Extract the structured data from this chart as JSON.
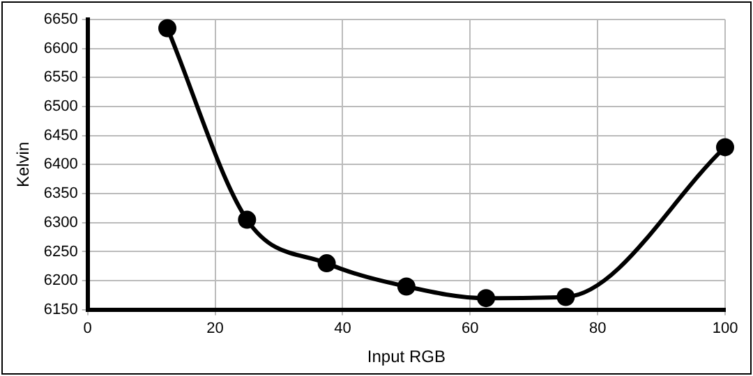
{
  "chart_data": {
    "type": "line",
    "xlabel": "Input RGB",
    "ylabel": "Kelvin",
    "x": [
      12.5,
      25,
      37.5,
      50,
      62.5,
      75,
      87.5,
      100
    ],
    "series": [
      {
        "color": "#000000",
        "values": [
          6635,
          6305,
          6230,
          6190,
          6170,
          6172,
          null,
          6430
        ]
      }
    ],
    "xlim": [
      0,
      100
    ],
    "xticks": [
      0,
      20,
      40,
      60,
      80,
      100
    ],
    "ylim": [
      6150,
      6650
    ],
    "yticks": [
      6150,
      6200,
      6250,
      6300,
      6350,
      6400,
      6450,
      6500,
      6550,
      6600,
      6650
    ],
    "grid": true,
    "legend": false,
    "marker": "circle",
    "line_style": "solid"
  }
}
